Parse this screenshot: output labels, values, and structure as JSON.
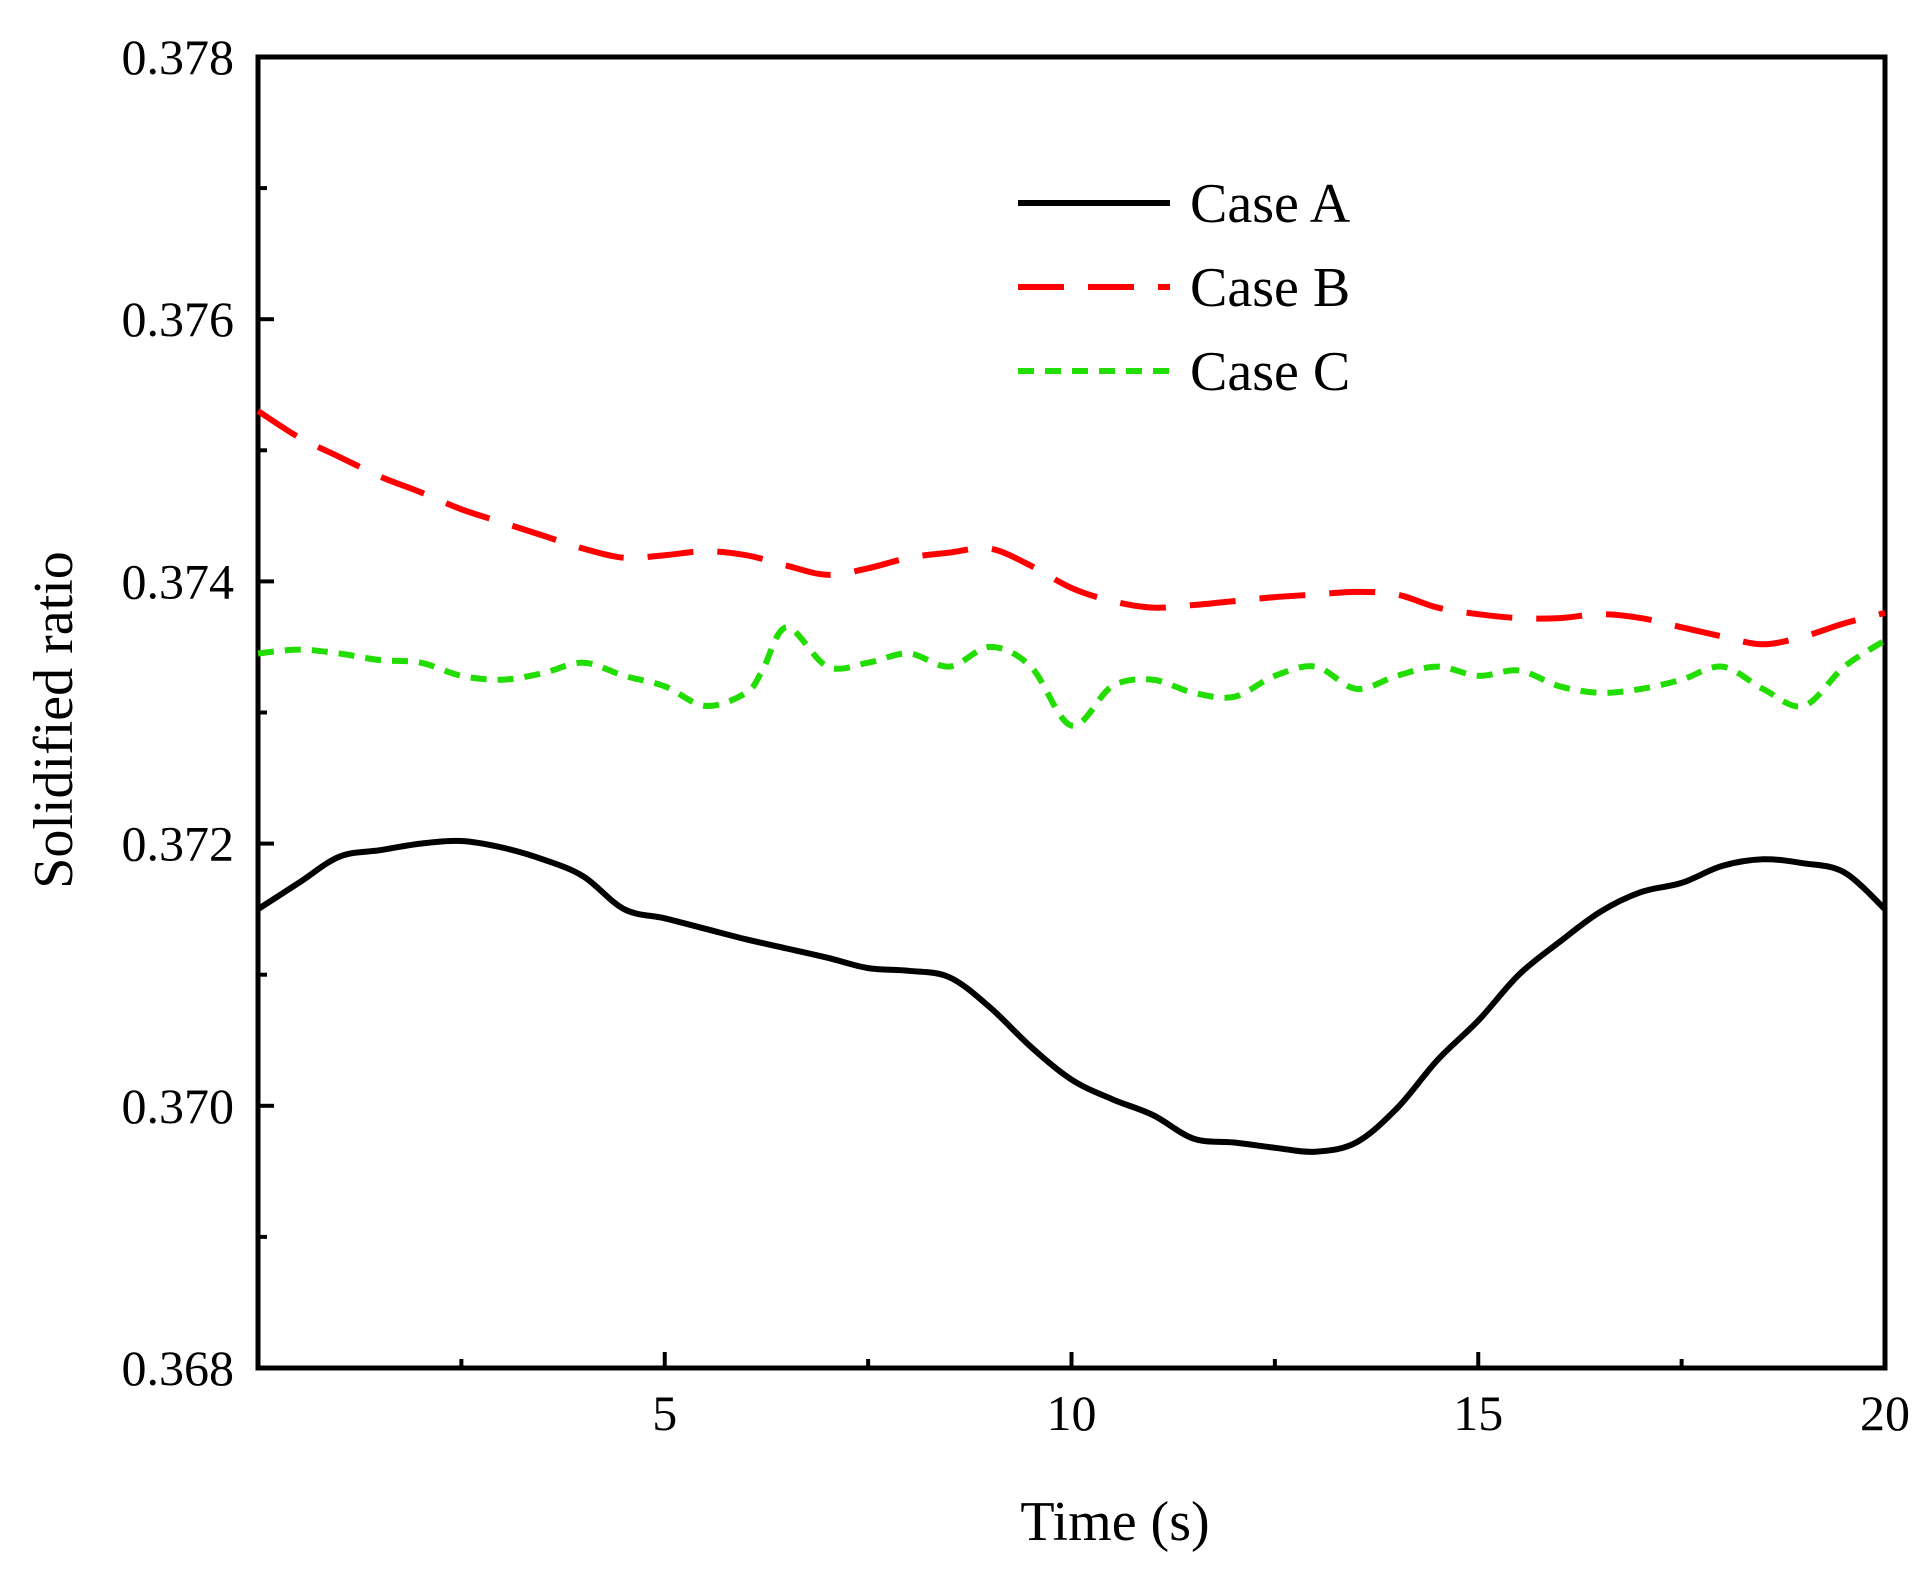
{
  "chart_data": {
    "type": "line",
    "title": "",
    "xlabel": "Time (s)",
    "ylabel": "Solidified ratio",
    "xlim": [
      0,
      20
    ],
    "ylim": [
      0.368,
      0.378
    ],
    "x_major_ticks": [
      5,
      10,
      15,
      20
    ],
    "x_minor_ticks": [
      2.5,
      7.5,
      12.5,
      17.5
    ],
    "y_major_ticks": [
      0.368,
      0.37,
      0.372,
      0.374,
      0.376,
      0.378
    ],
    "y_minor_ticks": [
      0.369,
      0.371,
      0.373,
      0.375,
      0.377
    ],
    "x_tick_labels": [
      "5",
      "10",
      "15",
      "20"
    ],
    "y_tick_labels": [
      "0.368",
      "0.370",
      "0.372",
      "0.374",
      "0.376",
      "0.378"
    ],
    "grid": false,
    "legend_position": "top-center",
    "series": [
      {
        "name": "Case A",
        "color": "#000000",
        "style": "solid",
        "x": [
          0,
          0.5,
          1,
          1.5,
          2,
          2.5,
          3,
          3.5,
          4,
          4.5,
          5,
          5.5,
          6,
          6.5,
          7,
          7.5,
          8,
          8.5,
          9,
          9.5,
          10,
          10.5,
          11,
          11.5,
          12,
          12.5,
          13,
          13.5,
          14,
          14.5,
          15,
          15.5,
          16,
          16.5,
          17,
          17.5,
          18,
          18.5,
          19,
          19.5,
          20
        ],
        "values": [
          0.3715,
          0.3717,
          0.3719,
          0.37195,
          0.372,
          0.37202,
          0.37197,
          0.37188,
          0.37175,
          0.3715,
          0.37143,
          0.37135,
          0.37127,
          0.3712,
          0.37113,
          0.37105,
          0.37103,
          0.37098,
          0.37075,
          0.37045,
          0.3702,
          0.37005,
          0.36993,
          0.36975,
          0.36972,
          0.36968,
          0.36965,
          0.36972,
          0.36998,
          0.37035,
          0.37065,
          0.371,
          0.37125,
          0.37148,
          0.37163,
          0.3717,
          0.37183,
          0.37188,
          0.37185,
          0.37178,
          0.3715
        ]
      },
      {
        "name": "Case B",
        "color": "#ff0000",
        "style": "dashed",
        "x": [
          0,
          0.5,
          1,
          1.5,
          2,
          2.5,
          3,
          3.5,
          4,
          4.5,
          5,
          5.5,
          6,
          6.5,
          7,
          7.5,
          8,
          8.5,
          9,
          9.5,
          10,
          10.5,
          11,
          11.5,
          12,
          12.5,
          13,
          13.5,
          14,
          14.5,
          15,
          15.5,
          16,
          16.5,
          17,
          17.5,
          18,
          18.5,
          19,
          19.5,
          20
        ],
        "values": [
          0.3753,
          0.3751,
          0.37495,
          0.3748,
          0.37468,
          0.37455,
          0.37445,
          0.37435,
          0.37425,
          0.37418,
          0.3742,
          0.37423,
          0.3742,
          0.37412,
          0.37405,
          0.3741,
          0.37418,
          0.37422,
          0.37425,
          0.37412,
          0.37395,
          0.37385,
          0.3738,
          0.37382,
          0.37385,
          0.37388,
          0.3739,
          0.37392,
          0.3739,
          0.3738,
          0.37375,
          0.37372,
          0.37372,
          0.37375,
          0.37372,
          0.37365,
          0.37358,
          0.37352,
          0.37358,
          0.37368,
          0.37376
        ]
      },
      {
        "name": "Case C",
        "color": "#22dd00",
        "style": "dotted",
        "x": [
          0,
          0.5,
          1,
          1.5,
          2,
          2.5,
          3,
          3.5,
          4,
          4.5,
          5,
          5.5,
          6,
          6.2,
          6.5,
          7,
          7.5,
          8,
          8.5,
          9,
          9.5,
          10,
          10.5,
          11,
          11.5,
          12,
          12.5,
          13,
          13.5,
          14,
          14.5,
          15,
          15.5,
          16,
          16.5,
          17,
          17.5,
          18,
          18.5,
          19,
          19.5,
          20
        ],
        "values": [
          0.37345,
          0.37348,
          0.37345,
          0.3734,
          0.37338,
          0.37328,
          0.37325,
          0.3733,
          0.37338,
          0.37328,
          0.3732,
          0.37305,
          0.37315,
          0.37332,
          0.37365,
          0.37335,
          0.37338,
          0.37345,
          0.37335,
          0.3735,
          0.37335,
          0.3729,
          0.3732,
          0.37325,
          0.37315,
          0.37312,
          0.37328,
          0.37335,
          0.37318,
          0.37328,
          0.37335,
          0.37328,
          0.37332,
          0.3732,
          0.37315,
          0.37318,
          0.37325,
          0.37335,
          0.37318,
          0.37305,
          0.37335,
          0.37355
        ]
      }
    ]
  }
}
